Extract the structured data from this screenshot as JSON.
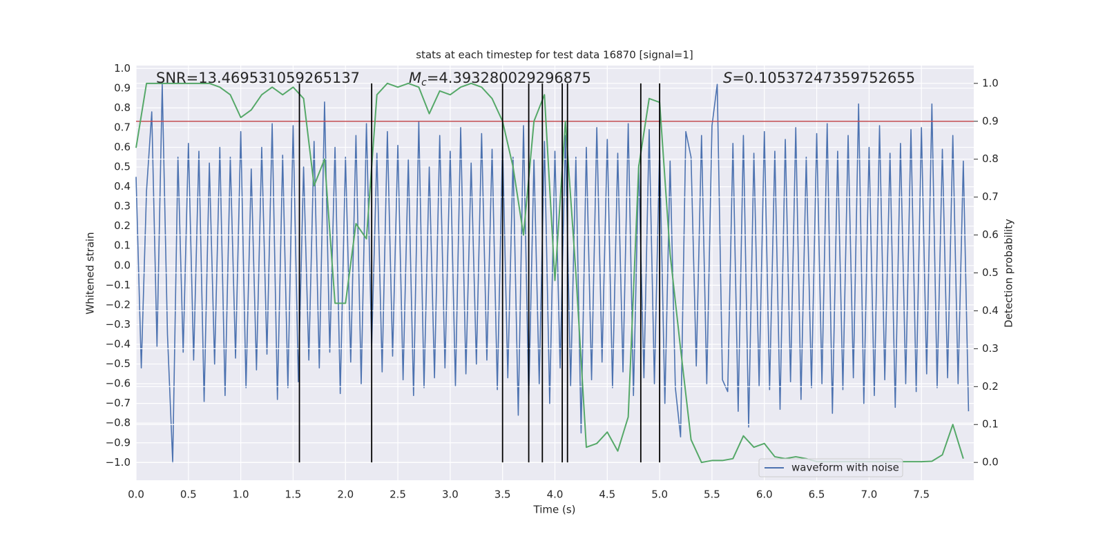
{
  "chart_data": {
    "type": "line",
    "title": "stats at each timestep for test data 16870 [signal=1]",
    "x_label": "Time (s)",
    "y_label": "Whitened strain",
    "y2_label": "Detection probability",
    "background": "#eaeaf2",
    "grid": true,
    "legend": "lower center",
    "annotations": [
      {
        "text": "SNR=13.469531059265137"
      },
      {
        "symbol": "M",
        "subscript": "c",
        "text": "=4.393280029296875"
      },
      {
        "symbol": "S",
        "text": "=0.10537247359752655"
      }
    ],
    "xlim": [
      0,
      8.0
    ],
    "ylim": [
      -1.09,
      1.015
    ],
    "y2lim": [
      -0.047,
      1.047
    ],
    "xticks": [
      {
        "value": 0,
        "label": "0.0"
      },
      {
        "value": 0.5,
        "label": "0.5"
      },
      {
        "value": 1,
        "label": "1.0"
      },
      {
        "value": 1.5,
        "label": "1.5"
      },
      {
        "value": 2,
        "label": "2.0"
      },
      {
        "value": 2.5,
        "label": "2.5"
      },
      {
        "value": 3,
        "label": "3.0"
      },
      {
        "value": 3.5,
        "label": "3.5"
      },
      {
        "value": 4,
        "label": "4.0"
      },
      {
        "value": 4.5,
        "label": "4.5"
      },
      {
        "value": 5,
        "label": "5.0"
      },
      {
        "value": 5.5,
        "label": "5.5"
      },
      {
        "value": 6,
        "label": "6.0"
      },
      {
        "value": 6.5,
        "label": "6.5"
      },
      {
        "value": 7,
        "label": "7.0"
      },
      {
        "value": 7.5,
        "label": "7.5"
      }
    ],
    "yticks": [
      {
        "value": -1,
        "label": "−1.0"
      },
      {
        "value": -0.9,
        "label": "−0.9"
      },
      {
        "value": -0.8,
        "label": "−0.8"
      },
      {
        "value": -0.7,
        "label": "−0.7"
      },
      {
        "value": -0.6,
        "label": "−0.6"
      },
      {
        "value": -0.5,
        "label": "−0.5"
      },
      {
        "value": -0.4,
        "label": "−0.4"
      },
      {
        "value": -0.3,
        "label": "−0.3"
      },
      {
        "value": -0.2,
        "label": "−0.2"
      },
      {
        "value": -0.1,
        "label": "−0.1"
      },
      {
        "value": 0,
        "label": "0.0"
      },
      {
        "value": 0.1,
        "label": "0.1"
      },
      {
        "value": 0.2,
        "label": "0.2"
      },
      {
        "value": 0.3,
        "label": "0.3"
      },
      {
        "value": 0.4,
        "label": "0.4"
      },
      {
        "value": 0.5,
        "label": "0.5"
      },
      {
        "value": 0.6,
        "label": "0.6"
      },
      {
        "value": 0.7,
        "label": "0.7"
      },
      {
        "value": 0.8,
        "label": "0.8"
      },
      {
        "value": 0.9,
        "label": "0.9"
      },
      {
        "value": 1,
        "label": "1.0"
      }
    ],
    "y2ticks": [
      {
        "value": 0,
        "label": "0.0"
      },
      {
        "value": 0.1,
        "label": "0.1"
      },
      {
        "value": 0.2,
        "label": "0.2"
      },
      {
        "value": 0.3,
        "label": "0.3"
      },
      {
        "value": 0.4,
        "label": "0.4"
      },
      {
        "value": 0.5,
        "label": "0.5"
      },
      {
        "value": 0.6,
        "label": "0.6"
      },
      {
        "value": 0.7,
        "label": "0.7"
      },
      {
        "value": 0.8,
        "label": "0.8"
      },
      {
        "value": 0.9,
        "label": "0.9"
      },
      {
        "value": 1,
        "label": "1.0"
      }
    ],
    "series": [
      {
        "name": "waveform with noise",
        "color": "#4c72b0",
        "x": [
          0,
          0.05,
          0.1,
          0.15,
          0.2,
          0.25,
          0.3,
          0.35,
          0.4,
          0.45,
          0.5,
          0.55,
          0.6,
          0.65,
          0.7,
          0.75,
          0.8,
          0.85,
          0.9,
          0.95,
          1,
          1.05,
          1.1,
          1.15,
          1.2,
          1.25,
          1.3,
          1.35,
          1.4,
          1.45,
          1.5,
          1.55,
          1.6,
          1.65,
          1.7,
          1.75,
          1.8,
          1.85,
          1.9,
          1.95,
          2,
          2.05,
          2.1,
          2.15,
          2.2,
          2.25,
          2.3,
          2.35,
          2.4,
          2.45,
          2.5,
          2.55,
          2.6,
          2.65,
          2.7,
          2.75,
          2.8,
          2.85,
          2.9,
          2.95,
          3,
          3.05,
          3.1,
          3.15,
          3.2,
          3.25,
          3.3,
          3.35,
          3.4,
          3.45,
          3.5,
          3.55,
          3.6,
          3.65,
          3.7,
          3.75,
          3.8,
          3.85,
          3.9,
          3.95,
          4,
          4.05,
          4.1,
          4.15,
          4.2,
          4.25,
          4.3,
          4.35,
          4.4,
          4.45,
          4.5,
          4.55,
          4.6,
          4.65,
          4.7,
          4.75,
          4.8,
          4.85,
          4.9,
          4.95,
          5,
          5.05,
          5.1,
          5.15,
          5.2,
          5.25,
          5.3,
          5.35,
          5.4,
          5.45,
          5.5,
          5.55,
          5.6,
          5.65,
          5.7,
          5.75,
          5.8,
          5.85,
          5.9,
          5.95,
          6,
          6.05,
          6.1,
          6.15,
          6.2,
          6.25,
          6.3,
          6.35,
          6.4,
          6.45,
          6.5,
          6.55,
          6.6,
          6.65,
          6.7,
          6.75,
          6.8,
          6.85,
          6.9,
          6.95,
          7,
          7.05,
          7.1,
          7.15,
          7.2,
          7.25,
          7.3,
          7.35,
          7.4,
          7.45,
          7.5,
          7.55,
          7.6,
          7.65,
          7.7,
          7.75,
          7.8,
          7.85,
          7.9,
          7.95
        ],
        "values": [
          0.45,
          -0.52,
          0.38,
          0.78,
          -0.41,
          0.92,
          -0.35,
          -1.0,
          0.55,
          -0.44,
          0.62,
          -0.48,
          0.58,
          -0.69,
          0.52,
          -0.5,
          0.6,
          -0.66,
          0.55,
          -0.47,
          0.68,
          -0.62,
          0.49,
          -0.53,
          0.6,
          -0.45,
          0.72,
          -0.68,
          0.56,
          -0.62,
          0.71,
          -0.59,
          0.5,
          -0.48,
          0.63,
          -0.52,
          0.83,
          -0.44,
          0.6,
          -0.65,
          0.55,
          -0.49,
          0.66,
          -0.6,
          0.72,
          -0.41,
          0.57,
          -0.54,
          0.68,
          -0.46,
          0.61,
          -0.58,
          0.54,
          -0.66,
          0.73,
          -0.62,
          0.5,
          -0.57,
          0.66,
          -0.52,
          0.58,
          -0.61,
          0.7,
          -0.55,
          0.52,
          -0.5,
          0.67,
          -0.48,
          0.59,
          -0.63,
          0.62,
          -0.57,
          0.55,
          -0.76,
          0.71,
          -0.68,
          0.54,
          -0.6,
          0.63,
          -0.7,
          0.58,
          -0.52,
          0.66,
          -0.61,
          0.55,
          -0.85,
          0.6,
          -0.58,
          0.7,
          -0.49,
          0.64,
          -0.62,
          0.57,
          -0.54,
          0.72,
          -0.66,
          0.51,
          -0.57,
          0.69,
          -0.6,
          0.6,
          -0.7,
          0.53,
          -0.62,
          -0.87,
          0.68,
          0.55,
          -0.51,
          0.66,
          -0.6,
          0.71,
          0.92,
          -0.58,
          -0.64,
          0.62,
          -0.74,
          0.66,
          -0.82,
          0.57,
          -0.61,
          0.68,
          -0.63,
          0.58,
          -0.73,
          0.64,
          -0.59,
          0.7,
          -0.68,
          0.55,
          -0.62,
          0.67,
          -0.6,
          0.72,
          -0.75,
          0.58,
          -0.63,
          0.66,
          -0.57,
          0.82,
          -0.7,
          0.6,
          -0.66,
          0.71,
          -0.58,
          0.57,
          -0.72,
          0.62,
          -0.6,
          0.69,
          -0.64,
          0.7,
          -0.55,
          0.82,
          -0.62,
          0.59,
          -0.57,
          0.66,
          -0.6,
          0.53,
          -0.74
        ]
      },
      {
        "color": "#55a868",
        "axis": "y2",
        "x": [
          0,
          0.1,
          0.2,
          0.3,
          0.4,
          0.5,
          0.6,
          0.7,
          0.8,
          0.9,
          1,
          1.1,
          1.2,
          1.3,
          1.4,
          1.5,
          1.6,
          1.7,
          1.8,
          1.9,
          2,
          2.1,
          2.2,
          2.3,
          2.4,
          2.5,
          2.6,
          2.7,
          2.8,
          2.9,
          3,
          3.1,
          3.2,
          3.3,
          3.4,
          3.5,
          3.6,
          3.7,
          3.8,
          3.9,
          4,
          4.1,
          4.2,
          4.3,
          4.4,
          4.5,
          4.6,
          4.7,
          4.8,
          4.9,
          5,
          5.1,
          5.2,
          5.3,
          5.4,
          5.5,
          5.6,
          5.7,
          5.8,
          5.9,
          6,
          6.1,
          6.2,
          6.3,
          6.4,
          6.5,
          6.6,
          6.7,
          6.8,
          6.9,
          7,
          7.1,
          7.2,
          7.3,
          7.4,
          7.5,
          7.6,
          7.7,
          7.8,
          7.9
        ],
        "values": [
          0.83,
          1.0,
          1.0,
          1.0,
          1.0,
          1.0,
          1.0,
          1.0,
          0.99,
          0.97,
          0.91,
          0.93,
          0.97,
          0.99,
          0.97,
          0.99,
          0.96,
          0.73,
          0.8,
          0.42,
          0.42,
          0.63,
          0.59,
          0.97,
          1.0,
          0.99,
          1.0,
          0.99,
          0.92,
          0.98,
          0.97,
          0.99,
          1.0,
          0.99,
          0.96,
          0.9,
          0.78,
          0.6,
          0.9,
          0.97,
          0.48,
          0.9,
          0.5,
          0.04,
          0.05,
          0.08,
          0.03,
          0.12,
          0.78,
          0.96,
          0.95,
          0.55,
          0.3,
          0.06,
          0.0,
          0.005,
          0.005,
          0.01,
          0.07,
          0.04,
          0.05,
          0.015,
          0.01,
          0.015,
          0.01,
          0.002,
          0.002,
          0.002,
          0.002,
          0.002,
          0.002,
          0.002,
          0.002,
          0.002,
          0.002,
          0.002,
          0.003,
          0.02,
          0.1,
          0.01
        ]
      }
    ],
    "hline": {
      "y": 0.9,
      "axis": "y2",
      "color": "#c44e52"
    },
    "vlines": {
      "x": [
        1.56,
        2.25,
        3.5,
        3.75,
        3.88,
        4.07,
        4.12,
        4.82,
        5.0
      ],
      "ymin": 0,
      "ymax": 1,
      "axis": "y2",
      "color": "#000000"
    }
  }
}
